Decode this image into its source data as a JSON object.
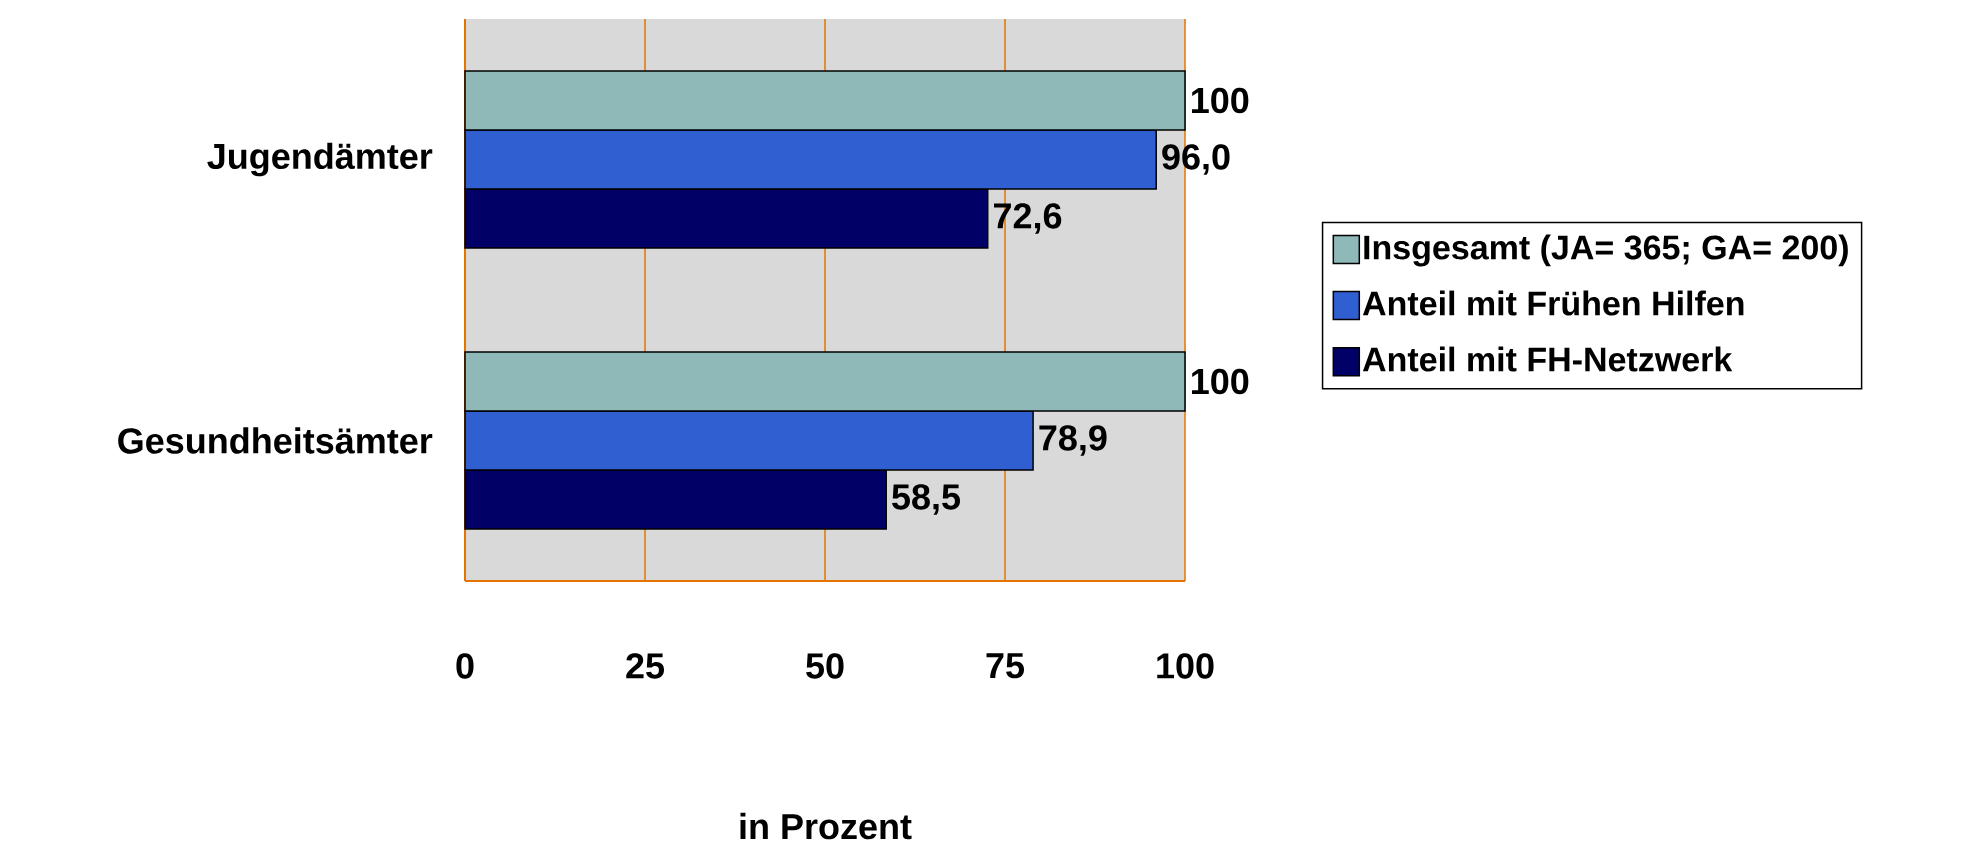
{
  "chart_data": {
    "type": "bar",
    "orientation": "horizontal",
    "categories": [
      "Jugendämter",
      "Gesundheitsämter"
    ],
    "xlabel": "in Prozent",
    "xlim": [
      0,
      100
    ],
    "xticks": [
      0,
      25,
      50,
      75,
      100
    ],
    "grid": "x",
    "legend": "right",
    "series": [
      {
        "name": "Insgesamt (JA= 365; GA= 200)",
        "color": "#8fb8b8",
        "values": [
          100,
          100
        ],
        "value_labels": [
          "100",
          "100"
        ]
      },
      {
        "name": "Anteil mit Frühen Hilfen",
        "color": "#2f5fd0",
        "values": [
          96.0,
          78.9
        ],
        "value_labels": [
          "96,0",
          "78,9"
        ]
      },
      {
        "name": "Anteil mit FH-Netzwerk",
        "color": "#000066",
        "values": [
          72.6,
          58.5
        ],
        "value_labels": [
          "72,6",
          "58,5"
        ]
      }
    ]
  }
}
